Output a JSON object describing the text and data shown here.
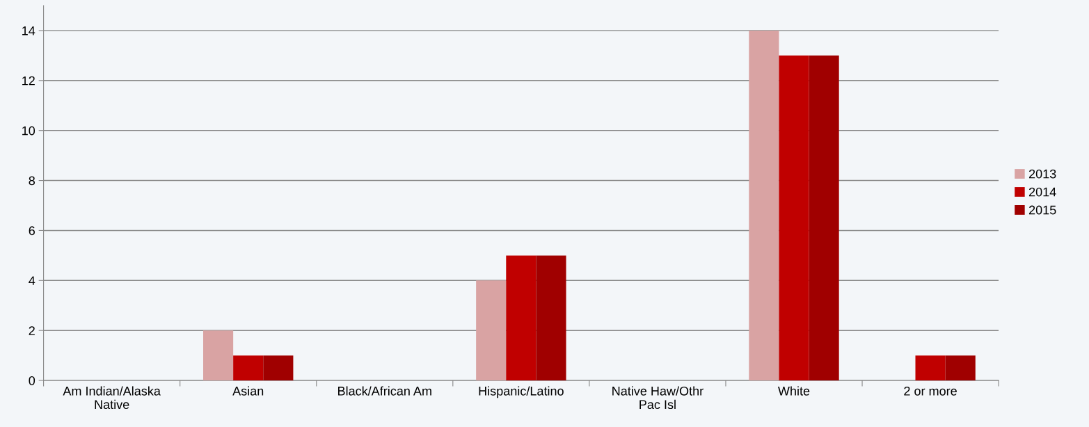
{
  "chart_data": {
    "type": "bar",
    "categories": [
      "Am Indian/Alaska Native",
      "Asian",
      "Black/African Am",
      "Hispanic/Latino",
      "Native Haw/Othr Pac Isl",
      "White",
      "2 or more"
    ],
    "series": [
      {
        "name": "2013",
        "color": "#d9a3a3",
        "values": [
          0,
          2,
          0,
          4,
          0,
          14,
          0
        ]
      },
      {
        "name": "2014",
        "color": "#c00000",
        "values": [
          0,
          1,
          0,
          5,
          0,
          13,
          1
        ]
      },
      {
        "name": "2015",
        "color": "#a00000",
        "values": [
          0,
          1,
          0,
          5,
          0,
          13,
          1
        ]
      }
    ],
    "ylim": [
      0,
      15
    ],
    "yticks": [
      0,
      2,
      4,
      6,
      8,
      10,
      12,
      14
    ],
    "grid": "y",
    "legend": "right"
  }
}
